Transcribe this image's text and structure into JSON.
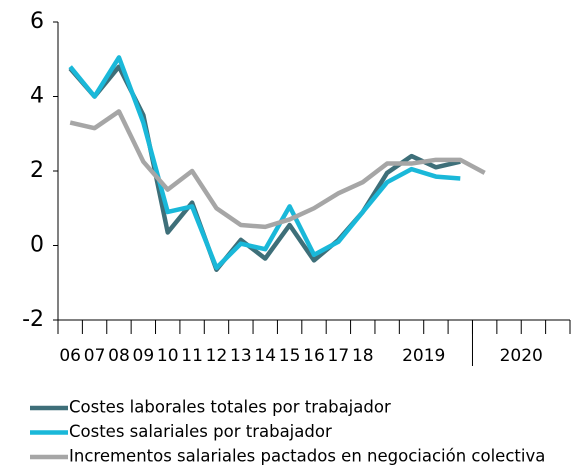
{
  "chart_data": {
    "type": "line",
    "categories": [
      "06",
      "07",
      "08",
      "09",
      "10",
      "11",
      "12",
      "13",
      "14",
      "15",
      "16",
      "17",
      "18",
      null,
      null,
      null,
      null,
      null,
      null,
      null,
      null
    ],
    "groups": [
      {
        "label": "2019",
        "span": 4
      },
      {
        "label": "2020",
        "span": 4
      }
    ],
    "series": [
      {
        "name": "Costes laborales totales por trabajador",
        "color": "#3e6f79",
        "values": [
          4.75,
          4.0,
          4.8,
          3.5,
          0.35,
          1.15,
          -0.65,
          0.15,
          -0.35,
          0.55,
          -0.4,
          0.15,
          0.9,
          1.95,
          2.4,
          2.1,
          2.25,
          null,
          null,
          null,
          null
        ]
      },
      {
        "name": "Costes salariales por trabajador",
        "color": "#1ab8d9",
        "values": [
          4.8,
          4.0,
          5.05,
          3.3,
          0.9,
          1.05,
          -0.6,
          0.05,
          -0.1,
          1.05,
          -0.25,
          0.1,
          0.9,
          1.7,
          2.05,
          1.85,
          1.8,
          null,
          null,
          null,
          null
        ]
      },
      {
        "name": "Incrementos salariales pactados en negociación colectiva",
        "color": "#a6a6a6",
        "values": [
          3.3,
          3.15,
          3.6,
          2.25,
          1.5,
          2.0,
          1.0,
          0.55,
          0.5,
          0.7,
          1.0,
          1.4,
          1.7,
          2.2,
          2.2,
          2.3,
          2.3,
          1.95,
          null,
          null,
          null
        ]
      }
    ],
    "ylim": [
      -2,
      6
    ],
    "yticks": [
      -2,
      0,
      2,
      4,
      6
    ]
  }
}
